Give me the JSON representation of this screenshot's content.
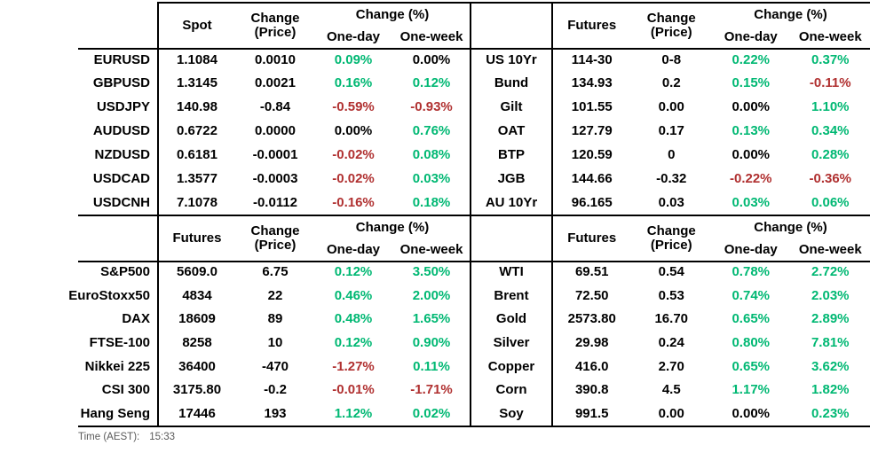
{
  "colors": {
    "positive": "#00b873",
    "negative": "#b03030",
    "neutral": "#000000",
    "muted": "#595959",
    "border": "#000000"
  },
  "footer": {
    "time_label": "Time (AEST):",
    "time_value": "15:33"
  },
  "chart_data": [
    {
      "type": "table",
      "id": "fx",
      "region": "top-left",
      "headers": {
        "value": "Spot",
        "change_line1": "Change",
        "change_line2": "(Price)",
        "pct_group": "Change (%)",
        "one_day": "One-day",
        "one_week": "One-week"
      },
      "rows": [
        {
          "label": "EURUSD",
          "value": "1.1084",
          "change": "0.0010",
          "one_day": {
            "text": "0.09%",
            "tone": "pos"
          },
          "one_week": {
            "text": "0.00%",
            "tone": "flat"
          }
        },
        {
          "label": "GBPUSD",
          "value": "1.3145",
          "change": "0.0021",
          "one_day": {
            "text": "0.16%",
            "tone": "pos"
          },
          "one_week": {
            "text": "0.12%",
            "tone": "pos"
          }
        },
        {
          "label": "USDJPY",
          "value": "140.98",
          "change": "-0.84",
          "one_day": {
            "text": "-0.59%",
            "tone": "neg"
          },
          "one_week": {
            "text": "-0.93%",
            "tone": "neg"
          }
        },
        {
          "label": "AUDUSD",
          "value": "0.6722",
          "change": "0.0000",
          "one_day": {
            "text": "0.00%",
            "tone": "flat"
          },
          "one_week": {
            "text": "0.76%",
            "tone": "pos"
          }
        },
        {
          "label": "NZDUSD",
          "value": "0.6181",
          "change": "-0.0001",
          "one_day": {
            "text": "-0.02%",
            "tone": "neg"
          },
          "one_week": {
            "text": "0.08%",
            "tone": "pos"
          }
        },
        {
          "label": "USDCAD",
          "value": "1.3577",
          "change": "-0.0003",
          "one_day": {
            "text": "-0.02%",
            "tone": "neg"
          },
          "one_week": {
            "text": "0.03%",
            "tone": "pos"
          }
        },
        {
          "label": "USDCNH",
          "value": "7.1078",
          "change": "-0.0112",
          "one_day": {
            "text": "-0.16%",
            "tone": "neg"
          },
          "one_week": {
            "text": "0.18%",
            "tone": "pos"
          }
        }
      ]
    },
    {
      "type": "table",
      "id": "bonds",
      "region": "top-right",
      "headers": {
        "value": "Futures",
        "change_line1": "Change",
        "change_line2": "(Price)",
        "pct_group": "Change (%)",
        "one_day": "One-day",
        "one_week": "One-week"
      },
      "rows": [
        {
          "label": "US 10Yr",
          "value": "114-30",
          "change": "0-8",
          "one_day": {
            "text": "0.22%",
            "tone": "pos"
          },
          "one_week": {
            "text": "0.37%",
            "tone": "pos"
          }
        },
        {
          "label": "Bund",
          "value": "134.93",
          "change": "0.2",
          "one_day": {
            "text": "0.15%",
            "tone": "pos"
          },
          "one_week": {
            "text": "-0.11%",
            "tone": "neg"
          }
        },
        {
          "label": "Gilt",
          "value": "101.55",
          "change": "0.00",
          "one_day": {
            "text": "0.00%",
            "tone": "flat"
          },
          "one_week": {
            "text": "1.10%",
            "tone": "pos"
          }
        },
        {
          "label": "OAT",
          "value": "127.79",
          "change": "0.17",
          "one_day": {
            "text": "0.13%",
            "tone": "pos"
          },
          "one_week": {
            "text": "0.34%",
            "tone": "pos"
          }
        },
        {
          "label": "BTP",
          "value": "120.59",
          "change": "0",
          "one_day": {
            "text": "0.00%",
            "tone": "flat"
          },
          "one_week": {
            "text": "0.28%",
            "tone": "pos"
          }
        },
        {
          "label": "JGB",
          "value": "144.66",
          "change": "-0.32",
          "one_day": {
            "text": "-0.22%",
            "tone": "neg"
          },
          "one_week": {
            "text": "-0.36%",
            "tone": "neg"
          }
        },
        {
          "label": "AU 10Yr",
          "value": "96.165",
          "change": "0.03",
          "one_day": {
            "text": "0.03%",
            "tone": "pos"
          },
          "one_week": {
            "text": "0.06%",
            "tone": "pos"
          }
        }
      ]
    },
    {
      "type": "table",
      "id": "equities",
      "region": "bottom-left",
      "headers": {
        "value": "Futures",
        "change_line1": "Change",
        "change_line2": "(Price)",
        "pct_group": "Change (%)",
        "one_day": "One-day",
        "one_week": "One-week"
      },
      "rows": [
        {
          "label": "S&P500",
          "value": "5609.0",
          "change": "6.75",
          "one_day": {
            "text": "0.12%",
            "tone": "pos"
          },
          "one_week": {
            "text": "3.50%",
            "tone": "pos"
          }
        },
        {
          "label": "EuroStoxx50",
          "value": "4834",
          "change": "22",
          "one_day": {
            "text": "0.46%",
            "tone": "pos"
          },
          "one_week": {
            "text": "2.00%",
            "tone": "pos"
          }
        },
        {
          "label": "DAX",
          "value": "18609",
          "change": "89",
          "one_day": {
            "text": "0.48%",
            "tone": "pos"
          },
          "one_week": {
            "text": "1.65%",
            "tone": "pos"
          }
        },
        {
          "label": "FTSE-100",
          "value": "8258",
          "change": "10",
          "one_day": {
            "text": "0.12%",
            "tone": "pos"
          },
          "one_week": {
            "text": "0.90%",
            "tone": "pos"
          }
        },
        {
          "label": "Nikkei 225",
          "value": "36400",
          "change": "-470",
          "one_day": {
            "text": "-1.27%",
            "tone": "neg"
          },
          "one_week": {
            "text": "0.11%",
            "tone": "pos"
          }
        },
        {
          "label": "CSI 300",
          "value": "3175.80",
          "change": "-0.2",
          "one_day": {
            "text": "-0.01%",
            "tone": "neg"
          },
          "one_week": {
            "text": "-1.71%",
            "tone": "neg"
          }
        },
        {
          "label": "Hang Seng",
          "value": "17446",
          "change": "193",
          "one_day": {
            "text": "1.12%",
            "tone": "pos"
          },
          "one_week": {
            "text": "0.02%",
            "tone": "pos"
          }
        }
      ]
    },
    {
      "type": "table",
      "id": "commodities",
      "region": "bottom-right",
      "headers": {
        "value": "Futures",
        "change_line1": "Change",
        "change_line2": "(Price)",
        "pct_group": "Change (%)",
        "one_day": "One-day",
        "one_week": "One-week"
      },
      "rows": [
        {
          "label": "WTI",
          "value": "69.51",
          "change": "0.54",
          "one_day": {
            "text": "0.78%",
            "tone": "pos"
          },
          "one_week": {
            "text": "2.72%",
            "tone": "pos"
          }
        },
        {
          "label": "Brent",
          "value": "72.50",
          "change": "0.53",
          "one_day": {
            "text": "0.74%",
            "tone": "pos"
          },
          "one_week": {
            "text": "2.03%",
            "tone": "pos"
          }
        },
        {
          "label": "Gold",
          "value": "2573.80",
          "change": "16.70",
          "one_day": {
            "text": "0.65%",
            "tone": "pos"
          },
          "one_week": {
            "text": "2.89%",
            "tone": "pos"
          }
        },
        {
          "label": "Silver",
          "value": "29.98",
          "change": "0.24",
          "one_day": {
            "text": "0.80%",
            "tone": "pos"
          },
          "one_week": {
            "text": "7.81%",
            "tone": "pos"
          }
        },
        {
          "label": "Copper",
          "value": "416.0",
          "change": "2.70",
          "one_day": {
            "text": "0.65%",
            "tone": "pos"
          },
          "one_week": {
            "text": "3.62%",
            "tone": "pos"
          }
        },
        {
          "label": "Corn",
          "value": "390.8",
          "change": "4.5",
          "one_day": {
            "text": "1.17%",
            "tone": "pos"
          },
          "one_week": {
            "text": "1.82%",
            "tone": "pos"
          }
        },
        {
          "label": "Soy",
          "value": "991.5",
          "change": "0.00",
          "one_day": {
            "text": "0.00%",
            "tone": "flat"
          },
          "one_week": {
            "text": "0.23%",
            "tone": "pos"
          }
        }
      ]
    }
  ]
}
